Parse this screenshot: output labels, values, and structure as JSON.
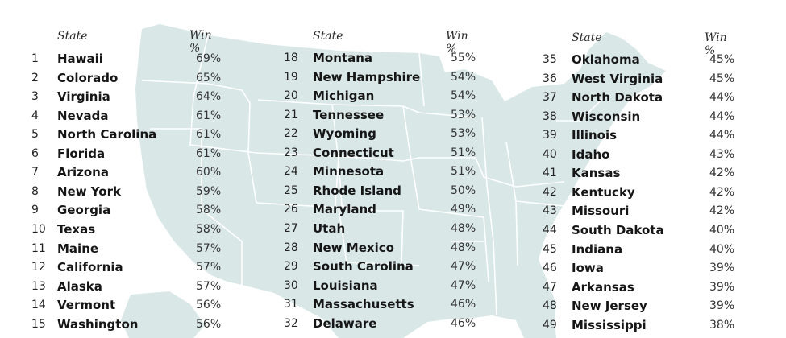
{
  "map_color": "#d9e7e7",
  "columns": [
    {
      "state_header": "State",
      "win_header": "Win %",
      "rows": [
        {
          "rank": "1",
          "state": "Hawaii",
          "win": "69%"
        },
        {
          "rank": "2",
          "state": "Colorado",
          "win": "65%"
        },
        {
          "rank": "3",
          "state": "Virginia",
          "win": "64%"
        },
        {
          "rank": "4",
          "state": "Nevada",
          "win": "61%"
        },
        {
          "rank": "5",
          "state": "North Carolina",
          "win": "61%"
        },
        {
          "rank": "6",
          "state": "Florida",
          "win": "61%"
        },
        {
          "rank": "7",
          "state": "Arizona",
          "win": "60%"
        },
        {
          "rank": "8",
          "state": "New York",
          "win": "59%"
        },
        {
          "rank": "9",
          "state": "Georgia",
          "win": "58%"
        },
        {
          "rank": "10",
          "state": "Texas",
          "win": "58%"
        },
        {
          "rank": "11",
          "state": "Maine",
          "win": "57%"
        },
        {
          "rank": "12",
          "state": "California",
          "win": "57%"
        },
        {
          "rank": "13",
          "state": "Alaska",
          "win": "57%"
        },
        {
          "rank": "14",
          "state": "Vermont",
          "win": "56%"
        },
        {
          "rank": "15",
          "state": "Washington",
          "win": "56%"
        }
      ]
    },
    {
      "state_header": "State",
      "win_header": "Win %",
      "rows": [
        {
          "rank": "18",
          "state": "Montana",
          "win": "55%"
        },
        {
          "rank": "19",
          "state": "New Hampshire",
          "win": "54%"
        },
        {
          "rank": "20",
          "state": "Michigan",
          "win": "54%"
        },
        {
          "rank": "21",
          "state": "Tennessee",
          "win": "53%"
        },
        {
          "rank": "22",
          "state": "Wyoming",
          "win": "53%"
        },
        {
          "rank": "23",
          "state": "Connecticut",
          "win": "51%"
        },
        {
          "rank": "24",
          "state": "Minnesota",
          "win": "51%"
        },
        {
          "rank": "25",
          "state": "Rhode Island",
          "win": "50%"
        },
        {
          "rank": "26",
          "state": "Maryland",
          "win": "49%"
        },
        {
          "rank": "27",
          "state": "Utah",
          "win": "48%"
        },
        {
          "rank": "28",
          "state": "New Mexico",
          "win": "48%"
        },
        {
          "rank": "29",
          "state": "South Carolina",
          "win": "47%"
        },
        {
          "rank": "30",
          "state": "Louisiana",
          "win": "47%"
        },
        {
          "rank": "31",
          "state": "Massachusetts",
          "win": "46%"
        },
        {
          "rank": "32",
          "state": "Delaware",
          "win": "46%"
        }
      ]
    },
    {
      "state_header": "State",
      "win_header": "Win %",
      "rows": [
        {
          "rank": "35",
          "state": "Oklahoma",
          "win": "45%"
        },
        {
          "rank": "36",
          "state": "West Virginia",
          "win": "45%"
        },
        {
          "rank": "37",
          "state": "North Dakota",
          "win": "44%"
        },
        {
          "rank": "38",
          "state": "Wisconsin",
          "win": "44%"
        },
        {
          "rank": "39",
          "state": "Illinois",
          "win": "44%"
        },
        {
          "rank": "40",
          "state": "Idaho",
          "win": "43%"
        },
        {
          "rank": "41",
          "state": "Kansas",
          "win": "42%"
        },
        {
          "rank": "42",
          "state": "Kentucky",
          "win": "42%"
        },
        {
          "rank": "43",
          "state": "Missouri",
          "win": "42%"
        },
        {
          "rank": "44",
          "state": "South Dakota",
          "win": "40%"
        },
        {
          "rank": "45",
          "state": "Indiana",
          "win": "40%"
        },
        {
          "rank": "46",
          "state": "Iowa",
          "win": "39%"
        },
        {
          "rank": "47",
          "state": "Arkansas",
          "win": "39%"
        },
        {
          "rank": "48",
          "state": "New Jersey",
          "win": "39%"
        },
        {
          "rank": "49",
          "state": "Mississippi",
          "win": "38%"
        }
      ]
    }
  ]
}
